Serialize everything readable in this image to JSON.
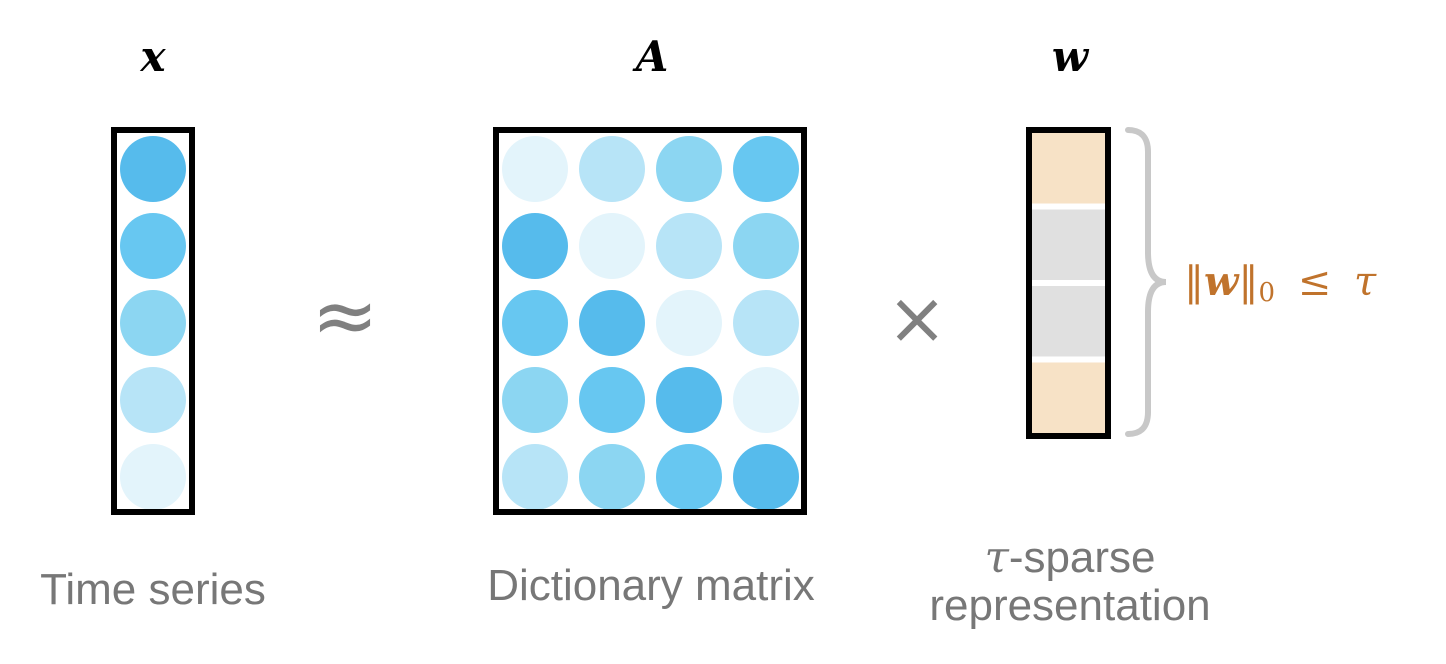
{
  "labels": {
    "x": "x",
    "A": "A",
    "w": "w"
  },
  "operators": {
    "approx": "≈",
    "times": "×"
  },
  "captions": {
    "x": "Time series",
    "A": "Dictionary matrix",
    "w_line1_symbol": "τ",
    "w_line1_text": "-sparse",
    "w_line2": "representation"
  },
  "norm": {
    "left_bars": "‖",
    "variable": "w",
    "right_bars": "‖",
    "subscript": "0",
    "relation": "≤",
    "bound": "τ",
    "color": "#C0732C"
  },
  "vector_x": {
    "cell_colors": [
      "#56BBEC",
      "#67C7F1",
      "#8CD6F2",
      "#B7E4F7",
      "#E3F4FB"
    ]
  },
  "matrix_A": {
    "rows": 5,
    "cols": 4,
    "cell_colors": [
      [
        "#E3F4FB",
        "#B7E4F7",
        "#8CD6F2",
        "#67C7F1"
      ],
      [
        "#56BBEC",
        "#E3F4FB",
        "#B7E4F7",
        "#8CD6F2"
      ],
      [
        "#67C7F1",
        "#56BBEC",
        "#E3F4FB",
        "#B7E4F7"
      ],
      [
        "#8CD6F2",
        "#67C7F1",
        "#56BBEC",
        "#E3F4FB"
      ],
      [
        "#B7E4F7",
        "#8CD6F2",
        "#67C7F1",
        "#56BBEC"
      ]
    ]
  },
  "vector_w": {
    "segments": [
      {
        "state": "nonzero",
        "color": "#F7E2C6"
      },
      {
        "state": "zero",
        "color": "#E0E0E0"
      },
      {
        "state": "zero",
        "color": "#E0E0E0"
      },
      {
        "state": "nonzero",
        "color": "#F7E2C6"
      }
    ]
  },
  "brace_color": "#C8C8C8",
  "frame_color": "#000000"
}
